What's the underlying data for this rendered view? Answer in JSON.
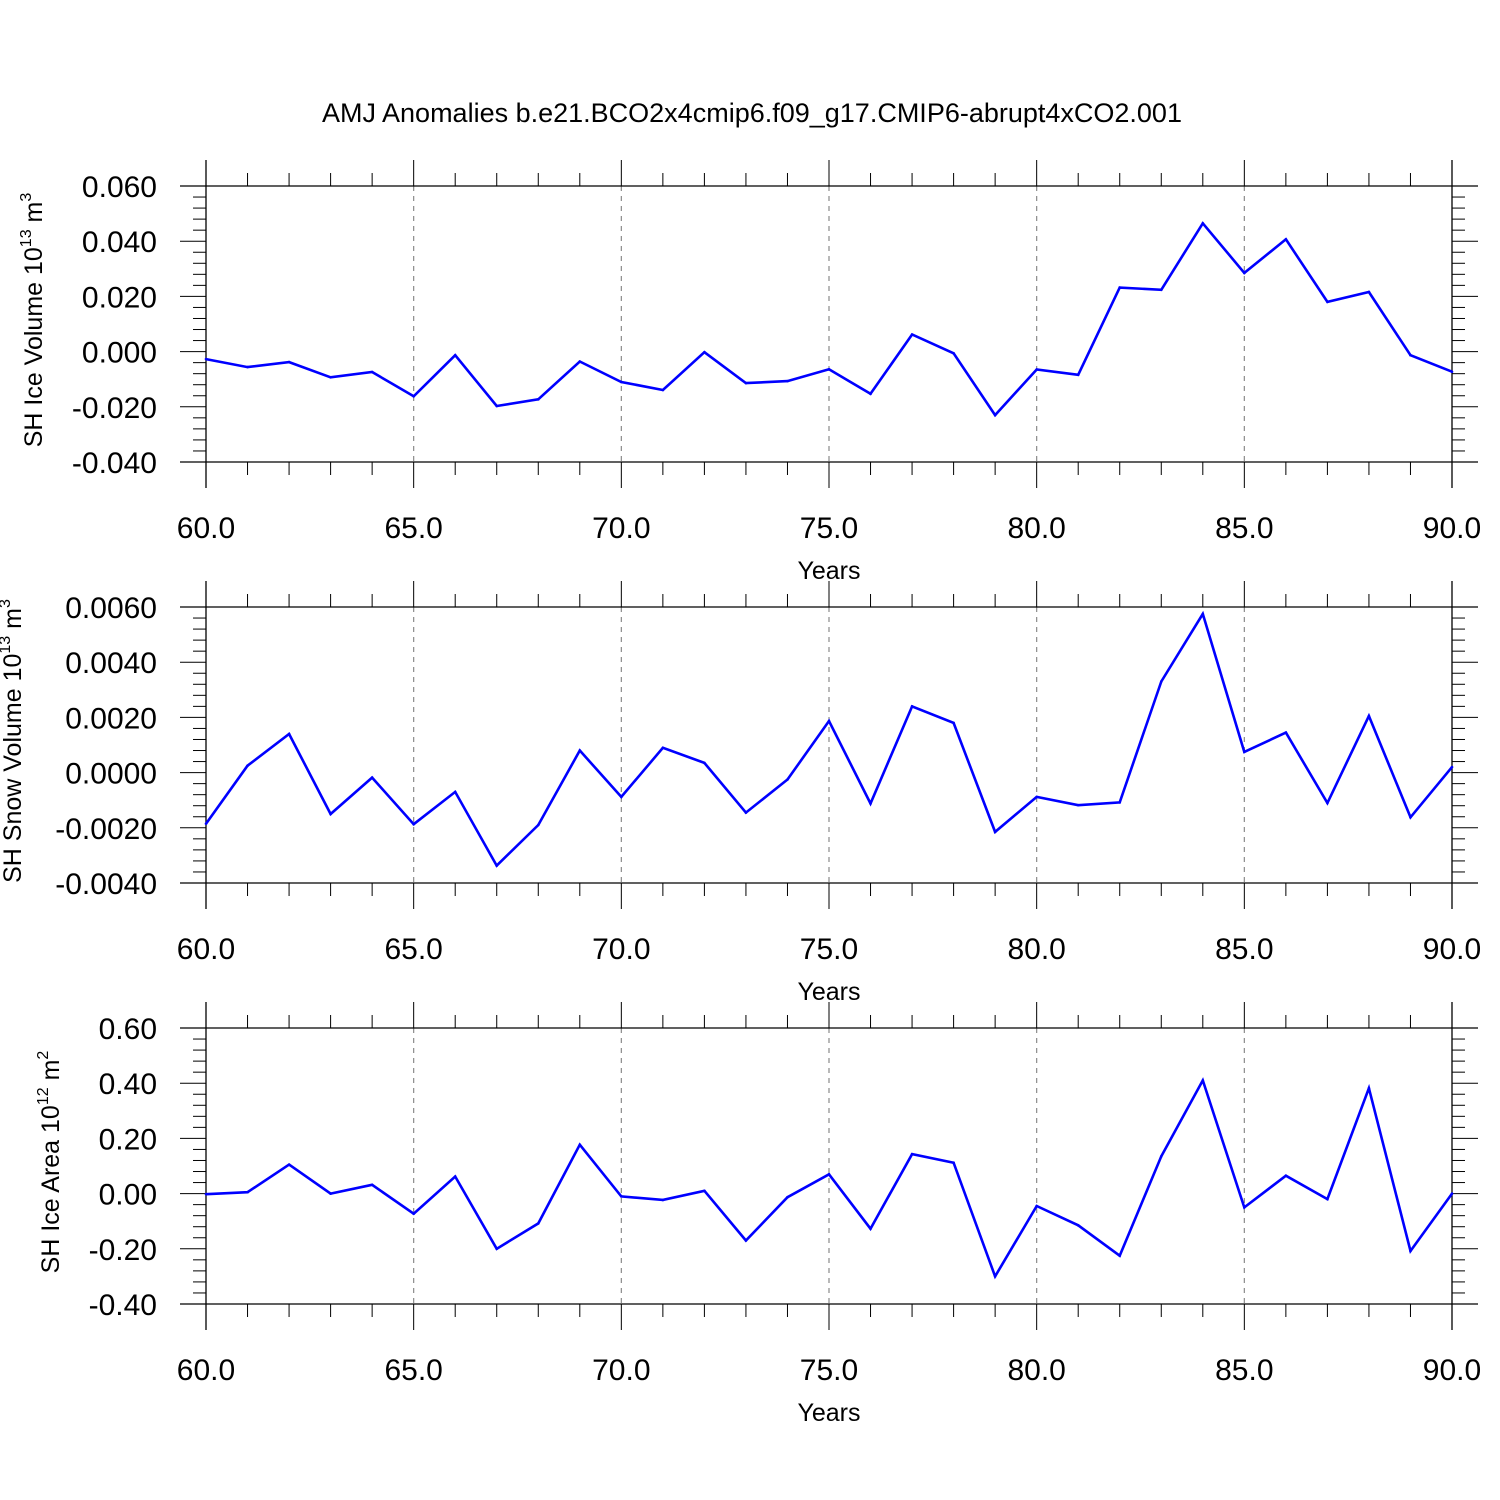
{
  "figure": {
    "title": "AMJ Anomalies b.e21.BCO2x4cmip6.f09_g17.CMIP6-abrupt4xCO2.001"
  },
  "colors": {
    "series": "#0000ff",
    "axis": "#000000",
    "grid": "#8a8a8a"
  },
  "chart_data": [
    {
      "type": "line",
      "ylabel_base": "SH Ice Volume 10",
      "ylabel_exp": "13",
      "ylabel_unit": " m",
      "ylabel_unit_exp": "3",
      "xlabel": "Years",
      "xlim": [
        60,
        90
      ],
      "ylim": [
        -0.04,
        0.06
      ],
      "xticks": [
        {
          "value": 60,
          "label": "60.0"
        },
        {
          "value": 65,
          "label": "65.0"
        },
        {
          "value": 70,
          "label": "70.0"
        },
        {
          "value": 75,
          "label": "75.0"
        },
        {
          "value": 80,
          "label": "80.0"
        },
        {
          "value": 85,
          "label": "85.0"
        },
        {
          "value": 90,
          "label": "90.0"
        }
      ],
      "yticks": [
        {
          "value": -0.04,
          "label": "-0.040"
        },
        {
          "value": -0.02,
          "label": "-0.020"
        },
        {
          "value": 0.0,
          "label": "0.000"
        },
        {
          "value": 0.02,
          "label": "0.020"
        },
        {
          "value": 0.04,
          "label": "0.040"
        },
        {
          "value": 0.06,
          "label": "0.060"
        }
      ],
      "grid": "vertical dashed at major x ticks",
      "x": [
        60,
        61,
        62,
        63,
        64,
        65,
        66,
        67,
        68,
        69,
        70,
        71,
        72,
        73,
        74,
        75,
        76,
        77,
        78,
        79,
        80,
        81,
        82,
        83,
        84,
        85,
        86,
        87,
        88,
        89,
        90
      ],
      "values": [
        -0.0027,
        -0.0056,
        -0.0038,
        -0.0093,
        -0.0074,
        -0.0162,
        -0.0013,
        -0.0197,
        -0.0173,
        -0.0036,
        -0.011,
        -0.0139,
        -0.0002,
        -0.0114,
        -0.0107,
        -0.0064,
        -0.0153,
        0.0062,
        -0.0006,
        -0.023,
        -0.0065,
        -0.0084,
        0.0232,
        0.0224,
        0.0465,
        0.0285,
        0.0407,
        0.018,
        0.0216,
        -0.0013,
        -0.0073
      ]
    },
    {
      "type": "line",
      "ylabel_base": "SH Snow Volume 10",
      "ylabel_exp": "13",
      "ylabel_unit": " m",
      "ylabel_unit_exp": "3",
      "xlabel": "Years",
      "xlim": [
        60,
        90
      ],
      "ylim": [
        -0.004,
        0.006
      ],
      "xticks": [
        {
          "value": 60,
          "label": "60.0"
        },
        {
          "value": 65,
          "label": "65.0"
        },
        {
          "value": 70,
          "label": "70.0"
        },
        {
          "value": 75,
          "label": "75.0"
        },
        {
          "value": 80,
          "label": "80.0"
        },
        {
          "value": 85,
          "label": "85.0"
        },
        {
          "value": 90,
          "label": "90.0"
        }
      ],
      "yticks": [
        {
          "value": -0.004,
          "label": "-0.0040"
        },
        {
          "value": -0.002,
          "label": "-0.0020"
        },
        {
          "value": 0.0,
          "label": "0.0000"
        },
        {
          "value": 0.002,
          "label": "0.0020"
        },
        {
          "value": 0.004,
          "label": "0.0040"
        },
        {
          "value": 0.006,
          "label": "0.0060"
        }
      ],
      "grid": "vertical dashed at major x ticks",
      "x": [
        60,
        61,
        62,
        63,
        64,
        65,
        66,
        67,
        68,
        69,
        70,
        71,
        72,
        73,
        74,
        75,
        76,
        77,
        78,
        79,
        80,
        81,
        82,
        83,
        84,
        85,
        86,
        87,
        88,
        89,
        90
      ],
      "values": [
        -0.00185,
        0.00025,
        0.0014,
        -0.0015,
        -0.00018,
        -0.00187,
        -0.0007,
        -0.00337,
        -0.0019,
        0.0008,
        -0.00088,
        0.0009,
        0.00035,
        -0.00145,
        -0.00025,
        0.00187,
        -0.00112,
        0.0024,
        0.0018,
        -0.00215,
        -0.00088,
        -0.00118,
        -0.00108,
        0.0033,
        0.00575,
        0.00075,
        0.00145,
        -0.0011,
        0.00205,
        -0.00162,
        0.0002
      ]
    },
    {
      "type": "line",
      "ylabel_base": "SH Ice Area 10",
      "ylabel_exp": "12",
      "ylabel_unit": " m",
      "ylabel_unit_exp": "2",
      "xlabel": "Years",
      "xlim": [
        60,
        90
      ],
      "ylim": [
        -0.4,
        0.6
      ],
      "xticks": [
        {
          "value": 60,
          "label": "60.0"
        },
        {
          "value": 65,
          "label": "65.0"
        },
        {
          "value": 70,
          "label": "70.0"
        },
        {
          "value": 75,
          "label": "75.0"
        },
        {
          "value": 80,
          "label": "80.0"
        },
        {
          "value": 85,
          "label": "85.0"
        },
        {
          "value": 90,
          "label": "90.0"
        }
      ],
      "yticks": [
        {
          "value": -0.4,
          "label": "-0.40"
        },
        {
          "value": -0.2,
          "label": "-0.20"
        },
        {
          "value": 0.0,
          "label": "0.00"
        },
        {
          "value": 0.2,
          "label": "0.20"
        },
        {
          "value": 0.4,
          "label": "0.40"
        },
        {
          "value": 0.6,
          "label": "0.60"
        }
      ],
      "grid": "vertical dashed at major x ticks",
      "x": [
        60,
        61,
        62,
        63,
        64,
        65,
        66,
        67,
        68,
        69,
        70,
        71,
        72,
        73,
        74,
        75,
        76,
        77,
        78,
        79,
        80,
        81,
        82,
        83,
        84,
        85,
        86,
        87,
        88,
        89,
        90
      ],
      "values": [
        -0.002,
        0.005,
        0.105,
        0.0,
        0.032,
        -0.073,
        0.062,
        -0.2,
        -0.108,
        0.177,
        -0.01,
        -0.023,
        0.01,
        -0.17,
        -0.013,
        0.07,
        -0.127,
        0.143,
        0.112,
        -0.3,
        -0.045,
        -0.115,
        -0.225,
        0.135,
        0.41,
        -0.05,
        0.065,
        -0.02,
        0.382,
        -0.208,
        0.0
      ]
    }
  ]
}
